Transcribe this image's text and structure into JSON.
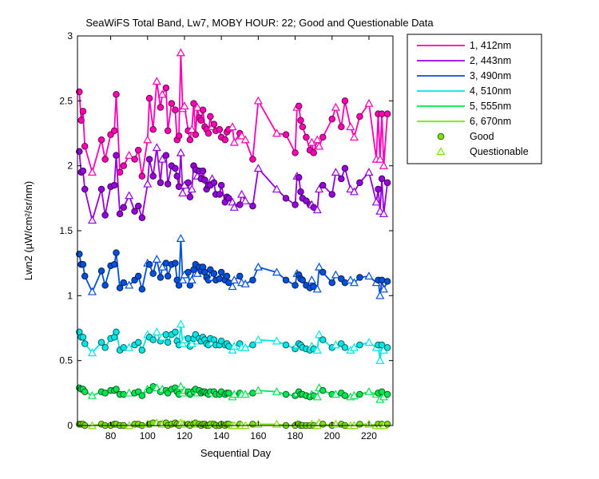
{
  "chart_data": {
    "type": "line",
    "title": "SeaWiFS Total Band, Lw7, MOBY HOUR: 22;  Good and Questionable Data",
    "xlabel": "Sequential Day",
    "ylabel": "Lwn2 (µW/cm²/sr/nm)",
    "xlim": [
      62,
      233
    ],
    "ylim": [
      0,
      3
    ],
    "xticks": [
      80,
      100,
      120,
      140,
      160,
      180,
      200,
      220
    ],
    "yticks": [
      0,
      0.5,
      1,
      1.5,
      2,
      2.5,
      3
    ],
    "grid": false,
    "legend_position": "outside-right",
    "x": [
      63,
      64,
      65,
      66,
      70,
      75,
      77,
      80,
      82,
      83,
      85,
      87,
      90,
      93,
      95,
      97,
      100,
      101,
      103,
      105,
      107,
      108,
      110,
      111,
      113,
      115,
      116,
      117,
      118,
      119,
      120,
      122,
      123,
      124,
      125,
      126,
      127,
      128,
      129,
      130,
      131,
      132,
      133,
      134,
      135,
      136,
      137,
      139,
      140,
      142,
      143,
      144,
      146,
      147,
      150,
      151,
      153,
      157,
      160,
      170,
      175,
      180,
      181,
      182,
      183,
      184,
      186,
      188,
      189,
      190,
      192,
      193,
      195,
      200,
      202,
      205,
      207,
      210,
      212,
      215,
      220,
      224,
      225,
      226,
      227,
      228,
      230
    ],
    "series": [
      {
        "name": "1, 412nm",
        "color": "#ff00b4",
        "values": [
          2.57,
          2.35,
          2.42,
          2.15,
          1.95,
          2.2,
          2.05,
          2.24,
          2.27,
          2.55,
          1.95,
          2.0,
          2.08,
          2.05,
          2.12,
          1.92,
          2.2,
          2.52,
          2.28,
          2.65,
          2.45,
          2.55,
          2.6,
          2.27,
          2.48,
          2.43,
          2.2,
          2.23,
          2.87,
          2.44,
          2.46,
          2.27,
          2.2,
          2.28,
          2.48,
          2.24,
          2.45,
          2.37,
          2.35,
          2.43,
          2.3,
          2.28,
          2.25,
          2.38,
          2.3,
          2.32,
          2.27,
          2.28,
          2.22,
          2.2,
          2.26,
          2.28,
          2.3,
          2.18,
          2.25,
          2.23,
          2.2,
          2.05,
          2.5,
          2.25,
          2.24,
          2.1,
          2.45,
          2.46,
          2.35,
          2.3,
          2.22,
          2.12,
          2.18,
          2.1,
          2.2,
          2.15,
          2.22,
          2.36,
          2.45,
          2.3,
          2.5,
          2.3,
          2.22,
          2.38,
          2.48,
          2.05,
          2.4,
          2.05,
          2.4,
          2.0,
          2.4
        ]
      },
      {
        "name": "2, 443nm",
        "color": "#9600dc",
        "values": [
          2.11,
          1.95,
          1.96,
          1.82,
          1.58,
          1.82,
          1.62,
          1.84,
          1.85,
          2.08,
          1.63,
          1.68,
          1.77,
          1.65,
          1.69,
          1.6,
          1.86,
          2.05,
          1.92,
          2.14,
          1.87,
          2.05,
          2.08,
          1.86,
          2.0,
          1.98,
          1.92,
          1.84,
          2.1,
          1.79,
          1.85,
          1.87,
          1.76,
          1.82,
          2.0,
          1.97,
          1.92,
          1.96,
          1.9,
          1.96,
          1.89,
          1.82,
          1.85,
          1.85,
          1.9,
          1.87,
          1.78,
          1.78,
          1.85,
          1.72,
          1.76,
          1.75,
          1.72,
          1.68,
          1.7,
          1.78,
          1.73,
          1.69,
          1.98,
          1.82,
          1.75,
          1.7,
          1.92,
          1.91,
          1.8,
          1.75,
          1.73,
          1.7,
          1.7,
          1.68,
          1.66,
          1.82,
          1.85,
          1.78,
          1.95,
          1.9,
          1.98,
          1.82,
          1.8,
          1.87,
          1.95,
          1.72,
          1.82,
          1.65,
          1.9,
          1.63,
          1.87
        ]
      },
      {
        "name": "3, 490nm",
        "color": "#0050dc",
        "values": [
          1.32,
          1.24,
          1.24,
          1.15,
          1.03,
          1.19,
          1.08,
          1.23,
          1.24,
          1.33,
          1.06,
          1.1,
          1.08,
          1.12,
          1.15,
          1.05,
          1.25,
          1.24,
          1.17,
          1.28,
          1.14,
          1.22,
          1.25,
          1.15,
          1.24,
          1.25,
          1.12,
          1.08,
          1.44,
          1.12,
          1.16,
          1.18,
          1.08,
          1.12,
          1.2,
          1.24,
          1.17,
          1.22,
          1.19,
          1.22,
          1.18,
          1.14,
          1.12,
          1.2,
          1.14,
          1.17,
          1.12,
          1.13,
          1.18,
          1.12,
          1.15,
          1.1,
          1.07,
          1.12,
          1.15,
          1.1,
          1.09,
          1.12,
          1.22,
          1.18,
          1.12,
          1.08,
          1.17,
          1.16,
          1.13,
          1.12,
          1.08,
          1.06,
          1.12,
          1.07,
          1.05,
          1.22,
          1.18,
          1.1,
          1.16,
          1.13,
          1.1,
          1.12,
          1.1,
          1.14,
          1.15,
          1.1,
          1.12,
          1.0,
          1.12,
          1.05,
          1.11
        ]
      },
      {
        "name": "4, 510nm",
        "color": "#00e6e6",
        "values": [
          0.72,
          0.68,
          0.68,
          0.63,
          0.56,
          0.64,
          0.6,
          0.67,
          0.68,
          0.72,
          0.58,
          0.6,
          0.6,
          0.62,
          0.64,
          0.58,
          0.7,
          0.68,
          0.66,
          0.72,
          0.65,
          0.68,
          0.7,
          0.64,
          0.7,
          0.72,
          0.65,
          0.62,
          0.78,
          0.63,
          0.66,
          0.67,
          0.61,
          0.63,
          0.67,
          0.7,
          0.65,
          0.67,
          0.65,
          0.68,
          0.66,
          0.63,
          0.62,
          0.67,
          0.64,
          0.66,
          0.62,
          0.62,
          0.65,
          0.62,
          0.63,
          0.61,
          0.58,
          0.61,
          0.63,
          0.6,
          0.6,
          0.62,
          0.66,
          0.65,
          0.62,
          0.59,
          0.62,
          0.63,
          0.62,
          0.6,
          0.59,
          0.58,
          0.61,
          0.59,
          0.58,
          0.7,
          0.66,
          0.6,
          0.62,
          0.63,
          0.6,
          0.58,
          0.6,
          0.62,
          0.64,
          0.6,
          0.62,
          0.5,
          0.62,
          0.58,
          0.6
        ]
      },
      {
        "name": "5, 555nm",
        "color": "#00e650",
        "values": [
          0.29,
          0.28,
          0.28,
          0.26,
          0.23,
          0.26,
          0.25,
          0.27,
          0.27,
          0.28,
          0.24,
          0.24,
          0.25,
          0.25,
          0.26,
          0.23,
          0.28,
          0.27,
          0.3,
          0.29,
          0.26,
          0.28,
          0.27,
          0.25,
          0.28,
          0.29,
          0.26,
          0.24,
          0.3,
          0.25,
          0.27,
          0.26,
          0.24,
          0.26,
          0.26,
          0.28,
          0.25,
          0.27,
          0.25,
          0.26,
          0.26,
          0.25,
          0.24,
          0.26,
          0.25,
          0.26,
          0.24,
          0.24,
          0.26,
          0.24,
          0.25,
          0.25,
          0.22,
          0.24,
          0.25,
          0.24,
          0.24,
          0.25,
          0.27,
          0.26,
          0.24,
          0.23,
          0.25,
          0.26,
          0.24,
          0.24,
          0.23,
          0.22,
          0.24,
          0.23,
          0.22,
          0.29,
          0.27,
          0.24,
          0.24,
          0.25,
          0.23,
          0.22,
          0.23,
          0.24,
          0.26,
          0.24,
          0.25,
          0.2,
          0.26,
          0.22,
          0.24
        ]
      },
      {
        "name": "6, 670nm",
        "color": "#78e600",
        "values": [
          0.01,
          0.01,
          0.01,
          0.0,
          0.0,
          0.01,
          0.0,
          0.0,
          0.01,
          0.01,
          0.0,
          0.0,
          0.0,
          0.01,
          0.01,
          0.0,
          0.01,
          0.01,
          0.02,
          0.02,
          0.01,
          0.01,
          0.02,
          0.0,
          0.01,
          0.02,
          0.01,
          0.0,
          0.02,
          0.01,
          0.01,
          0.01,
          0.0,
          0.01,
          0.01,
          0.02,
          0.01,
          0.01,
          0.0,
          0.01,
          0.01,
          0.0,
          0.0,
          0.01,
          0.01,
          0.01,
          0.0,
          0.0,
          0.01,
          0.0,
          0.01,
          0.01,
          0.0,
          0.0,
          0.01,
          0.0,
          0.0,
          0.01,
          0.01,
          0.01,
          0.0,
          0.0,
          0.01,
          0.01,
          0.0,
          0.0,
          0.0,
          0.0,
          0.01,
          0.0,
          0.0,
          0.02,
          0.01,
          0.0,
          0.01,
          0.01,
          0.0,
          0.0,
          0.0,
          0.01,
          0.01,
          0.0,
          0.01,
          0.0,
          0.01,
          0.0,
          0.01
        ]
      }
    ],
    "flags": "GGGGQGGGGGGGQGGGQGGQGQGGGGGGQQQGGQGGQGGGGGGGQGGGGGGGQQGQQGQQGGQGGGGGQGQQGGQGGQQGQQGQGQG",
    "marker_legend": [
      {
        "label": "Good",
        "marker": "circle"
      },
      {
        "label": "Questionable",
        "marker": "triangle"
      }
    ]
  }
}
